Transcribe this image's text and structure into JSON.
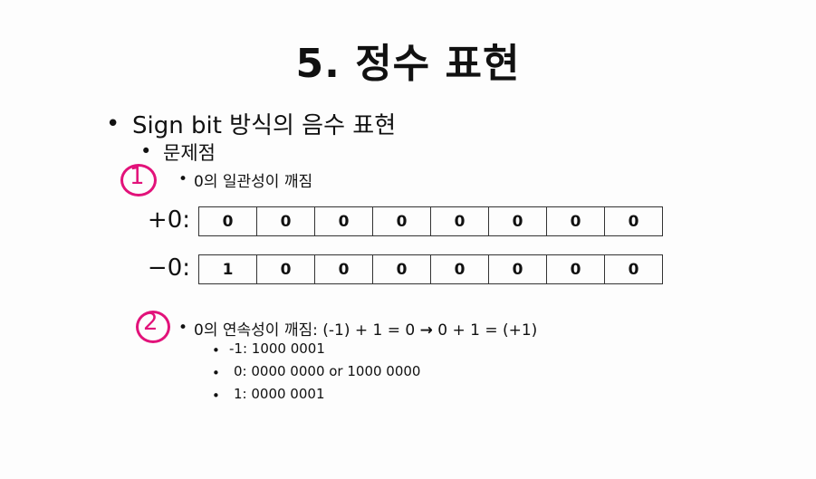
{
  "title": "5. 정수 표현",
  "bullet_l1": "Sign bit 방식의 음수 표현",
  "bullet_l2": "문제점",
  "problem1": {
    "marker": "1",
    "text": "0의 일관성이 깨짐"
  },
  "rows": [
    {
      "label": "+0:",
      "bits": [
        "0",
        "0",
        "0",
        "0",
        "0",
        "0",
        "0",
        "0"
      ]
    },
    {
      "label": "−0:",
      "bits": [
        "1",
        "0",
        "0",
        "0",
        "0",
        "0",
        "0",
        "0"
      ]
    }
  ],
  "problem2": {
    "marker": "2",
    "text_before": "0의 연속성이 깨짐: (-1) + 1 = 0",
    "arrow": "→",
    "text_after": "0 + 1 = (+1)",
    "items": [
      "-1: 1000 0001",
      "0: 0000 0000 or 1000 0000",
      "1: 0000 0001"
    ]
  },
  "bullet_char": "•",
  "accent_color": "#e2127a"
}
